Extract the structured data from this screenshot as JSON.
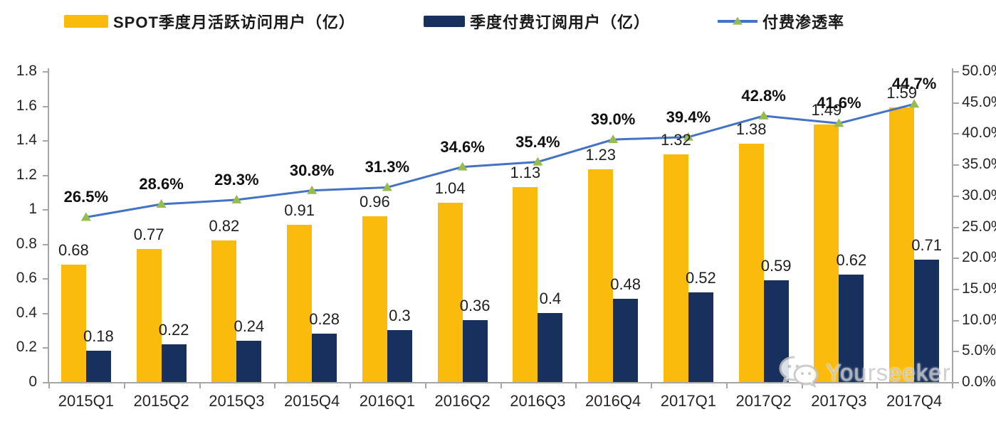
{
  "legend": {
    "mau": "SPOT季度月活跃访问用户（亿）",
    "subs": "季度付费订阅用户（亿）",
    "penetration": "付费渗透率"
  },
  "watermark": {
    "text": "Yourseeker",
    "icon": "wechat-icon"
  },
  "chart_data": {
    "type": "combo-bar-line",
    "title": "",
    "categories": [
      "2015Q1",
      "2015Q2",
      "2015Q3",
      "2015Q4",
      "2016Q1",
      "2016Q2",
      "2016Q3",
      "2016Q4",
      "2017Q1",
      "2017Q2",
      "2017Q3",
      "2017Q4"
    ],
    "series": [
      {
        "name": "SPOT季度月活跃访问用户（亿）",
        "type": "bar",
        "color": "#FBBB0C",
        "values": [
          0.68,
          0.77,
          0.82,
          0.91,
          0.96,
          1.04,
          1.13,
          1.23,
          1.32,
          1.38,
          1.49,
          1.59
        ]
      },
      {
        "name": "季度付费订阅用户（亿）",
        "type": "bar",
        "color": "#17305E",
        "values": [
          0.18,
          0.22,
          0.24,
          0.28,
          0.3,
          0.36,
          0.4,
          0.48,
          0.52,
          0.59,
          0.62,
          0.71
        ]
      },
      {
        "name": "付费渗透率",
        "type": "line",
        "axis": "right",
        "unit": "%",
        "color": "#4472C4",
        "marker": "triangle",
        "marker_color": "#97BB4F",
        "values": [
          26.5,
          28.6,
          29.3,
          30.8,
          31.3,
          34.6,
          35.4,
          39.0,
          39.4,
          42.8,
          41.6,
          44.7
        ]
      }
    ],
    "left_axis": {
      "min": 0,
      "max": 1.8,
      "ticks": [
        "0",
        "0.2",
        "0.4",
        "0.6",
        "0.8",
        "1",
        "1.2",
        "1.4",
        "1.6",
        "1.8"
      ]
    },
    "right_axis": {
      "min": 0,
      "max": 50,
      "ticks": [
        "0.0%",
        "5.0%",
        "10.0%",
        "15.0%",
        "20.0%",
        "25.0%",
        "30.0%",
        "35.0%",
        "40.0%",
        "45.0%",
        "50.0%"
      ]
    },
    "grid": false,
    "legend_position": "top",
    "data_labels": true
  }
}
